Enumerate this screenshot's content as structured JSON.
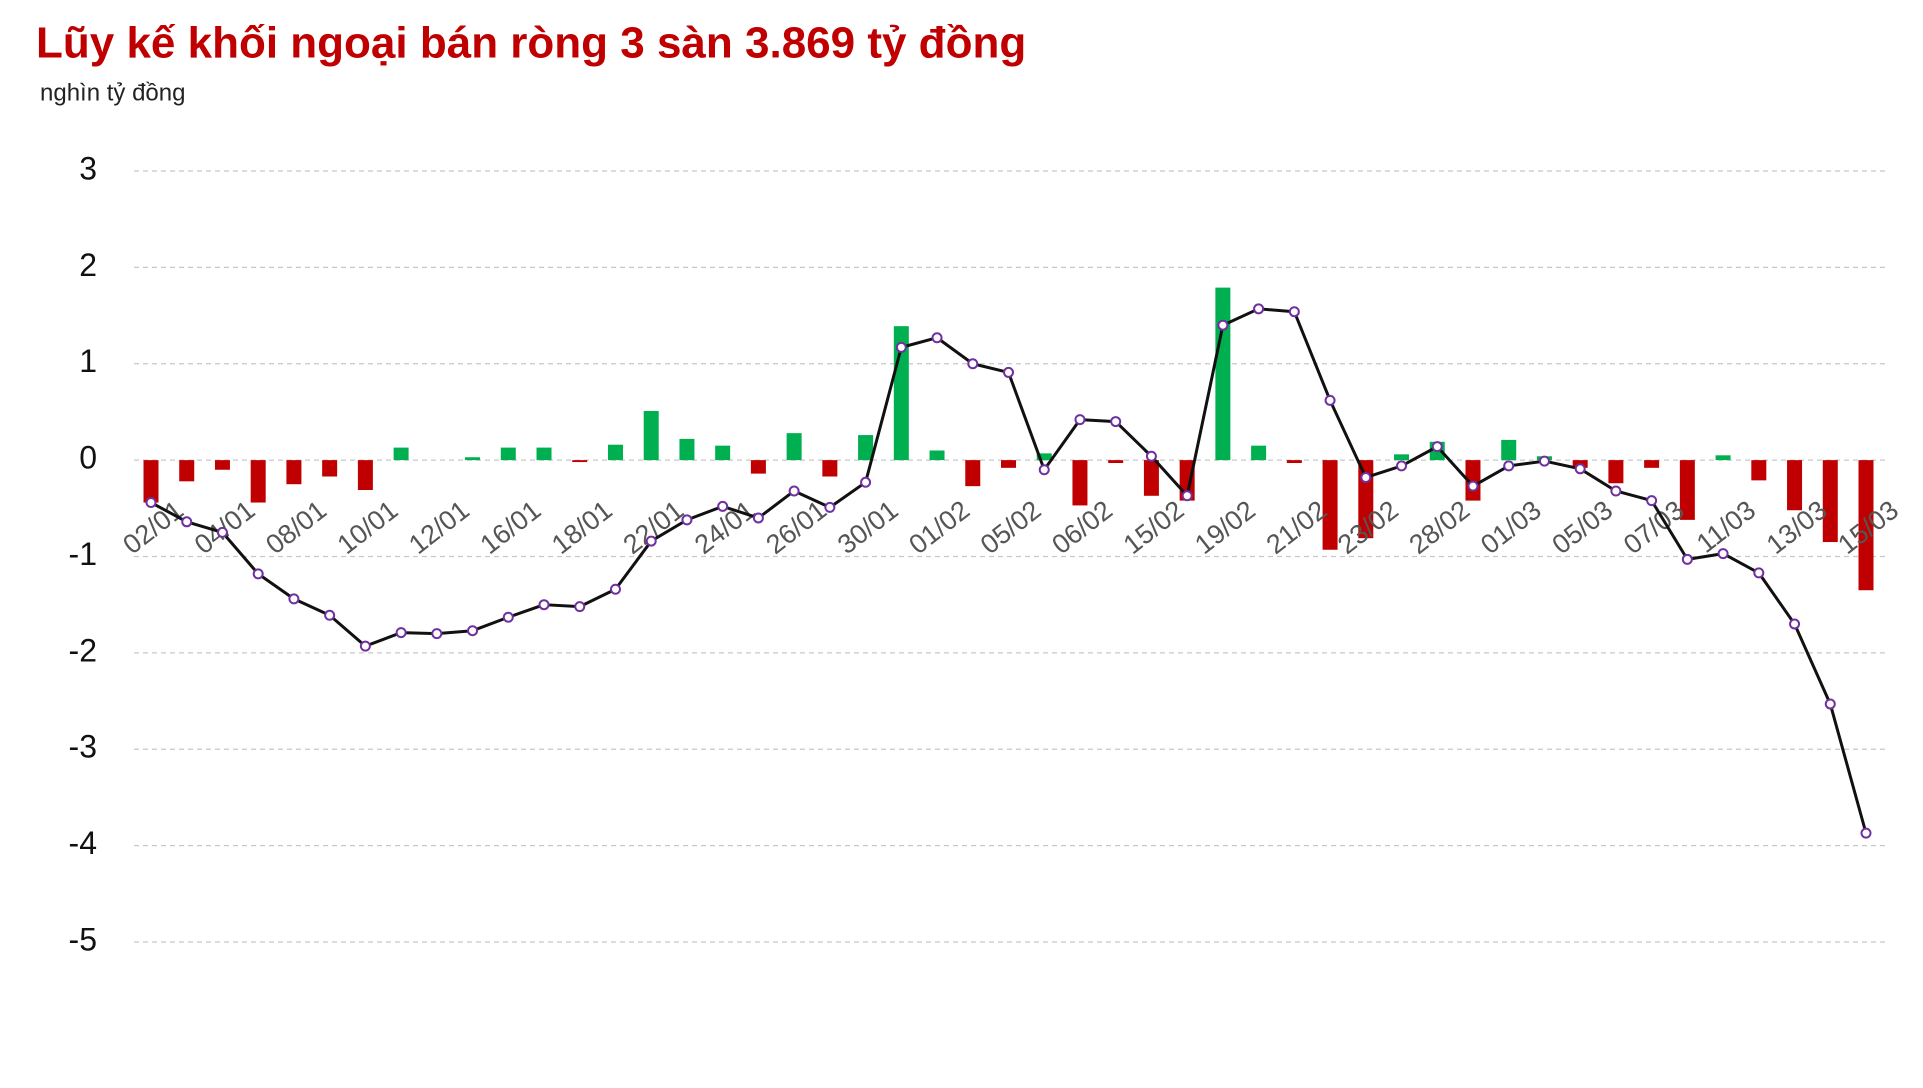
{
  "chart_data": {
    "type": "bar_line",
    "title": "Lũy kế khối ngoại bán ròng 3 sàn 3.869 tỷ đồng",
    "subtitle": "nghìn tỷ đồng",
    "categories": [
      "02/01",
      null,
      "04/01",
      null,
      "08/01",
      null,
      "10/01",
      null,
      "12/01",
      null,
      "16/01",
      null,
      "18/01",
      null,
      "22/01",
      null,
      "24/01",
      null,
      "26/01",
      null,
      "30/01",
      null,
      "01/02",
      null,
      "05/02",
      null,
      "06/02",
      null,
      "15/02",
      null,
      "19/02",
      null,
      "21/02",
      null,
      "23/02",
      null,
      "28/02",
      null,
      "01/03",
      null,
      "05/03",
      null,
      "07/03",
      null,
      "11/03",
      null,
      "13/03",
      null,
      "15/03"
    ],
    "series": [
      {
        "type": "bar",
        "positive_color": "#00b050",
        "negative_color": "#c00000",
        "values": [
          -0.44,
          -0.22,
          -0.1,
          -0.44,
          -0.25,
          -0.17,
          -0.31,
          0.13,
          0,
          0.03,
          0.13,
          0.13,
          -0.02,
          0.16,
          0.51,
          0.22,
          0.15,
          -0.14,
          0.28,
          -0.17,
          0.26,
          1.39,
          0.1,
          -0.27,
          -0.08,
          0.07,
          -0.47,
          -0.03,
          -0.37,
          -0.42,
          1.79,
          0.15,
          -0.03,
          -0.93,
          -0.81,
          0.06,
          0.19,
          -0.42,
          0.21,
          0.04,
          -0.08,
          -0.24,
          -0.08,
          -0.62,
          0.05,
          -0.21,
          -0.52,
          -0.85,
          -1.35
        ]
      },
      {
        "type": "line",
        "color": "#111111",
        "marker_color": "#7030a0",
        "values": [
          -0.44,
          -0.64,
          -0.75,
          -1.18,
          -1.44,
          -1.61,
          -1.93,
          -1.79,
          -1.8,
          -1.77,
          -1.63,
          -1.5,
          -1.52,
          -1.34,
          -0.84,
          -0.62,
          -0.48,
          -0.6,
          -0.32,
          -0.49,
          -0.23,
          1.17,
          1.27,
          1.0,
          0.91,
          -0.1,
          0.42,
          0.4,
          0.04,
          -0.37,
          1.4,
          1.57,
          1.54,
          0.62,
          -0.18,
          -0.06,
          0.14,
          -0.27,
          -0.06,
          -0.01,
          -0.09,
          -0.32,
          -0.42,
          -1.03,
          -0.97,
          -1.17,
          -1.7,
          -2.53,
          -3.87
        ]
      }
    ],
    "ylim": [
      -5,
      3
    ],
    "yticks": [
      3,
      2,
      1,
      0,
      -1,
      -2,
      -3,
      -4,
      -5
    ],
    "grid": true
  }
}
